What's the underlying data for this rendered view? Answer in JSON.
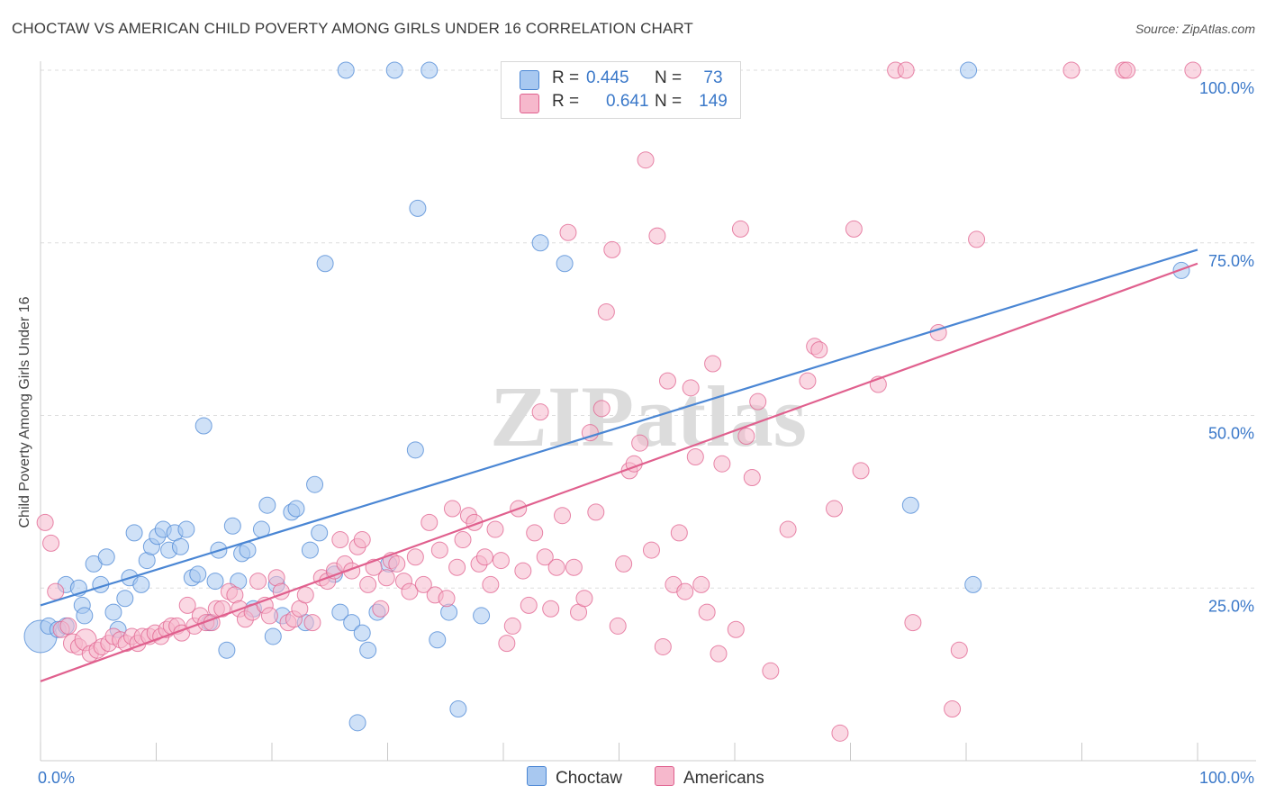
{
  "title": "CHOCTAW VS AMERICAN CHILD POVERTY AMONG GIRLS UNDER 16 CORRELATION CHART",
  "source": "Source: ZipAtlas.com",
  "watermark": "ZIPatlas",
  "legend": {
    "rows": [
      {
        "r_label": "R =",
        "r_value": "0.445",
        "n_label": "N =",
        "n_value": "73",
        "color": "#a8c8f0"
      },
      {
        "r_label": "R =",
        "r_value": "0.641",
        "n_label": "N =",
        "n_value": "149",
        "color": "#f6b8cc"
      }
    ]
  },
  "bottom_legend": [
    {
      "label": "Choctaw",
      "color": "#a8c8f0"
    },
    {
      "label": "Americans",
      "color": "#f6b8cc"
    }
  ],
  "chart_data": {
    "type": "scatter",
    "title": "CHOCTAW VS AMERICAN CHILD POVERTY AMONG GIRLS UNDER 16 CORRELATION CHART",
    "xlabel": "",
    "ylabel": "Child Poverty Among Girls Under 16",
    "x_ticks": [
      "0.0%",
      "100.0%"
    ],
    "y_ticks": [
      "25.0%",
      "50.0%",
      "75.0%",
      "100.0%"
    ],
    "xlim": [
      0,
      100
    ],
    "ylim": [
      0,
      100
    ],
    "grid": "horizontal dashed",
    "series": [
      {
        "name": "Choctaw",
        "color": "#4a86d4",
        "fill": "#a8c8f0",
        "trend": {
          "x0": 0,
          "y0": 22.5,
          "x1": 100,
          "y1": 74
        },
        "points": [
          [
            0,
            18,
            24
          ],
          [
            0.7,
            19.5,
            12
          ],
          [
            1.5,
            19,
            12
          ],
          [
            2.2,
            19.5,
            12
          ],
          [
            2.2,
            25.5,
            12
          ],
          [
            3.3,
            25,
            12
          ],
          [
            3.6,
            22.5,
            12
          ],
          [
            3.8,
            21,
            12
          ],
          [
            4.6,
            28.5,
            12
          ],
          [
            5.2,
            25.5,
            12
          ],
          [
            5.7,
            29.5,
            12
          ],
          [
            6.3,
            21.5,
            12
          ],
          [
            6.7,
            19,
            12
          ],
          [
            7.3,
            23.5,
            12
          ],
          [
            7.7,
            26.5,
            12
          ],
          [
            8.1,
            33,
            12
          ],
          [
            8.7,
            25.5,
            12
          ],
          [
            9.2,
            29,
            12
          ],
          [
            9.6,
            31,
            12
          ],
          [
            10.1,
            32.5,
            12
          ],
          [
            10.6,
            33.5,
            12
          ],
          [
            11.1,
            30.5,
            12
          ],
          [
            11.6,
            33,
            12
          ],
          [
            12.1,
            31,
            12
          ],
          [
            12.6,
            33.5,
            12
          ],
          [
            13.1,
            26.5,
            12
          ],
          [
            13.6,
            27,
            12
          ],
          [
            14.1,
            48.5,
            12
          ],
          [
            14.6,
            20,
            12
          ],
          [
            15.1,
            26,
            12
          ],
          [
            15.4,
            30.5,
            12
          ],
          [
            16.1,
            16,
            12
          ],
          [
            16.6,
            34,
            12
          ],
          [
            17.1,
            26,
            12
          ],
          [
            17.4,
            30,
            12
          ],
          [
            17.9,
            30.5,
            12
          ],
          [
            18.4,
            22,
            12
          ],
          [
            19.1,
            33.5,
            12
          ],
          [
            19.6,
            37,
            12
          ],
          [
            20.1,
            18,
            12
          ],
          [
            20.4,
            25.5,
            12
          ],
          [
            20.9,
            21,
            12
          ],
          [
            21.7,
            36,
            12
          ],
          [
            22.1,
            36.5,
            12
          ],
          [
            22.9,
            20,
            12
          ],
          [
            23.3,
            30.5,
            12
          ],
          [
            23.7,
            40,
            12
          ],
          [
            24.1,
            33,
            12
          ],
          [
            24.6,
            72,
            12
          ],
          [
            25.4,
            27,
            12
          ],
          [
            25.9,
            21.5,
            12
          ],
          [
            26.4,
            100,
            12
          ],
          [
            26.9,
            20,
            12
          ],
          [
            27.4,
            5.5,
            12
          ],
          [
            27.8,
            18.5,
            12
          ],
          [
            28.3,
            16,
            12
          ],
          [
            29.1,
            21.5,
            12
          ],
          [
            30.1,
            28.5,
            12
          ],
          [
            30.6,
            100,
            12
          ],
          [
            32.4,
            45,
            12
          ],
          [
            32.6,
            80,
            12
          ],
          [
            33.6,
            100,
            12
          ],
          [
            34.3,
            17.5,
            12
          ],
          [
            35.3,
            21.5,
            12
          ],
          [
            36.1,
            7.5,
            12
          ],
          [
            38.1,
            21,
            12
          ],
          [
            43.2,
            75,
            12
          ],
          [
            45.3,
            72,
            12
          ],
          [
            75.2,
            37,
            12
          ],
          [
            80.2,
            100,
            12
          ],
          [
            80.6,
            25.5,
            12
          ],
          [
            98.6,
            71,
            12
          ]
        ]
      },
      {
        "name": "Americans",
        "color": "#e0608e",
        "fill": "#f6b8cc",
        "trend": {
          "x0": 0,
          "y0": 11.5,
          "x1": 100,
          "y1": 72
        },
        "points": [
          [
            0.4,
            34.5,
            12
          ],
          [
            0.9,
            31.5,
            12
          ],
          [
            1.3,
            24.5,
            12
          ],
          [
            1.8,
            19,
            12
          ],
          [
            2.4,
            19.5,
            12
          ],
          [
            2.8,
            17,
            14
          ],
          [
            3.3,
            16.5,
            12
          ],
          [
            3.9,
            17.5,
            16
          ],
          [
            4.3,
            15.5,
            12
          ],
          [
            4.9,
            16,
            12
          ],
          [
            5.3,
            16.5,
            12
          ],
          [
            5.9,
            17,
            12
          ],
          [
            6.3,
            18,
            12
          ],
          [
            6.9,
            17.5,
            12
          ],
          [
            7.4,
            17,
            12
          ],
          [
            7.9,
            18,
            12
          ],
          [
            8.4,
            17,
            12
          ],
          [
            8.8,
            18,
            12
          ],
          [
            9.4,
            18,
            12
          ],
          [
            9.9,
            18.5,
            12
          ],
          [
            10.4,
            18,
            12
          ],
          [
            10.9,
            19,
            12
          ],
          [
            11.3,
            19.5,
            12
          ],
          [
            11.8,
            19.5,
            12
          ],
          [
            12.2,
            18.5,
            12
          ],
          [
            12.7,
            22.5,
            12
          ],
          [
            13.3,
            19.5,
            12
          ],
          [
            13.8,
            21,
            12
          ],
          [
            14.3,
            20,
            12
          ],
          [
            14.8,
            20,
            12
          ],
          [
            15.2,
            22,
            12
          ],
          [
            15.7,
            22,
            12
          ],
          [
            16.3,
            24.5,
            12
          ],
          [
            16.8,
            24,
            12
          ],
          [
            17.2,
            22,
            12
          ],
          [
            17.7,
            20.5,
            12
          ],
          [
            18.3,
            21.5,
            12
          ],
          [
            18.8,
            26,
            12
          ],
          [
            19.4,
            22.5,
            12
          ],
          [
            19.8,
            21,
            12
          ],
          [
            20.4,
            26.5,
            12
          ],
          [
            20.8,
            24.5,
            12
          ],
          [
            21.4,
            20,
            12
          ],
          [
            21.9,
            20.5,
            12
          ],
          [
            22.4,
            22,
            12
          ],
          [
            22.9,
            24,
            12
          ],
          [
            23.5,
            20,
            12
          ],
          [
            24.3,
            26.5,
            12
          ],
          [
            24.8,
            26,
            12
          ],
          [
            25.4,
            27.5,
            12
          ],
          [
            25.9,
            32,
            12
          ],
          [
            26.3,
            28.5,
            12
          ],
          [
            26.9,
            27.5,
            12
          ],
          [
            27.4,
            31,
            12
          ],
          [
            27.8,
            32,
            12
          ],
          [
            28.3,
            25.5,
            12
          ],
          [
            28.8,
            28,
            12
          ],
          [
            29.4,
            22,
            12
          ],
          [
            29.9,
            26.5,
            12
          ],
          [
            30.3,
            29,
            12
          ],
          [
            30.8,
            28.5,
            12
          ],
          [
            31.4,
            26,
            12
          ],
          [
            31.9,
            24.5,
            12
          ],
          [
            32.4,
            29.5,
            12
          ],
          [
            33.1,
            25.5,
            12
          ],
          [
            33.6,
            34.5,
            12
          ],
          [
            34.1,
            24,
            12
          ],
          [
            34.5,
            30.5,
            12
          ],
          [
            35.1,
            23.5,
            12
          ],
          [
            35.6,
            36.5,
            12
          ],
          [
            36.0,
            28,
            12
          ],
          [
            36.5,
            32,
            12
          ],
          [
            37.0,
            35.5,
            12
          ],
          [
            37.5,
            34.5,
            12
          ],
          [
            37.9,
            28.5,
            12
          ],
          [
            38.4,
            29.5,
            12
          ],
          [
            38.9,
            25.5,
            12
          ],
          [
            39.3,
            33.5,
            12
          ],
          [
            39.8,
            29,
            12
          ],
          [
            40.3,
            17,
            12
          ],
          [
            40.8,
            19.5,
            12
          ],
          [
            41.3,
            36.5,
            12
          ],
          [
            41.7,
            27.5,
            12
          ],
          [
            42.2,
            22.5,
            12
          ],
          [
            42.7,
            33,
            12
          ],
          [
            43.2,
            50.5,
            12
          ],
          [
            43.6,
            29.5,
            12
          ],
          [
            44.1,
            22,
            12
          ],
          [
            44.6,
            28,
            12
          ],
          [
            45.1,
            35.5,
            12
          ],
          [
            45.6,
            76.5,
            12
          ],
          [
            46.1,
            28,
            12
          ],
          [
            46.5,
            21.5,
            12
          ],
          [
            47.0,
            23.5,
            12
          ],
          [
            47.5,
            47.5,
            12
          ],
          [
            48.0,
            36,
            12
          ],
          [
            48.5,
            51,
            12
          ],
          [
            48.9,
            65,
            12
          ],
          [
            49.4,
            74,
            12
          ],
          [
            49.9,
            19.5,
            12
          ],
          [
            50.4,
            28.5,
            12
          ],
          [
            50.9,
            42,
            12
          ],
          [
            51.3,
            43,
            12
          ],
          [
            51.8,
            46,
            12
          ],
          [
            52.3,
            87,
            12
          ],
          [
            52.8,
            30.5,
            12
          ],
          [
            53.3,
            76,
            12
          ],
          [
            53.8,
            16.5,
            12
          ],
          [
            54.2,
            55,
            12
          ],
          [
            54.7,
            25.5,
            12
          ],
          [
            55.2,
            33,
            12
          ],
          [
            55.7,
            24.5,
            12
          ],
          [
            56.2,
            54,
            12
          ],
          [
            56.6,
            44,
            12
          ],
          [
            57.1,
            25.5,
            12
          ],
          [
            57.6,
            21.5,
            12
          ],
          [
            58.1,
            57.5,
            12
          ],
          [
            58.6,
            15.5,
            12
          ],
          [
            58.9,
            43,
            12
          ],
          [
            59.4,
            100,
            12
          ],
          [
            60.1,
            19,
            12
          ],
          [
            60.5,
            77,
            12
          ],
          [
            61.0,
            47,
            12
          ],
          [
            61.5,
            41,
            12
          ],
          [
            62.0,
            52,
            12
          ],
          [
            63.1,
            13,
            12
          ],
          [
            64.6,
            33.5,
            12
          ],
          [
            66.3,
            55,
            12
          ],
          [
            66.9,
            60,
            12
          ],
          [
            67.3,
            59.5,
            12
          ],
          [
            68.6,
            36.5,
            12
          ],
          [
            69.1,
            4,
            12
          ],
          [
            70.3,
            77,
            12
          ],
          [
            70.9,
            42,
            12
          ],
          [
            72.4,
            54.5,
            12
          ],
          [
            73.9,
            100,
            12
          ],
          [
            74.8,
            100,
            12
          ],
          [
            75.4,
            20,
            12
          ],
          [
            77.6,
            62,
            12
          ],
          [
            78.8,
            7.5,
            12
          ],
          [
            79.4,
            16,
            12
          ],
          [
            80.9,
            75.5,
            12
          ],
          [
            89.1,
            100,
            12
          ],
          [
            93.6,
            100,
            12
          ],
          [
            93.9,
            100,
            12
          ],
          [
            99.6,
            100,
            12
          ]
        ]
      }
    ]
  }
}
